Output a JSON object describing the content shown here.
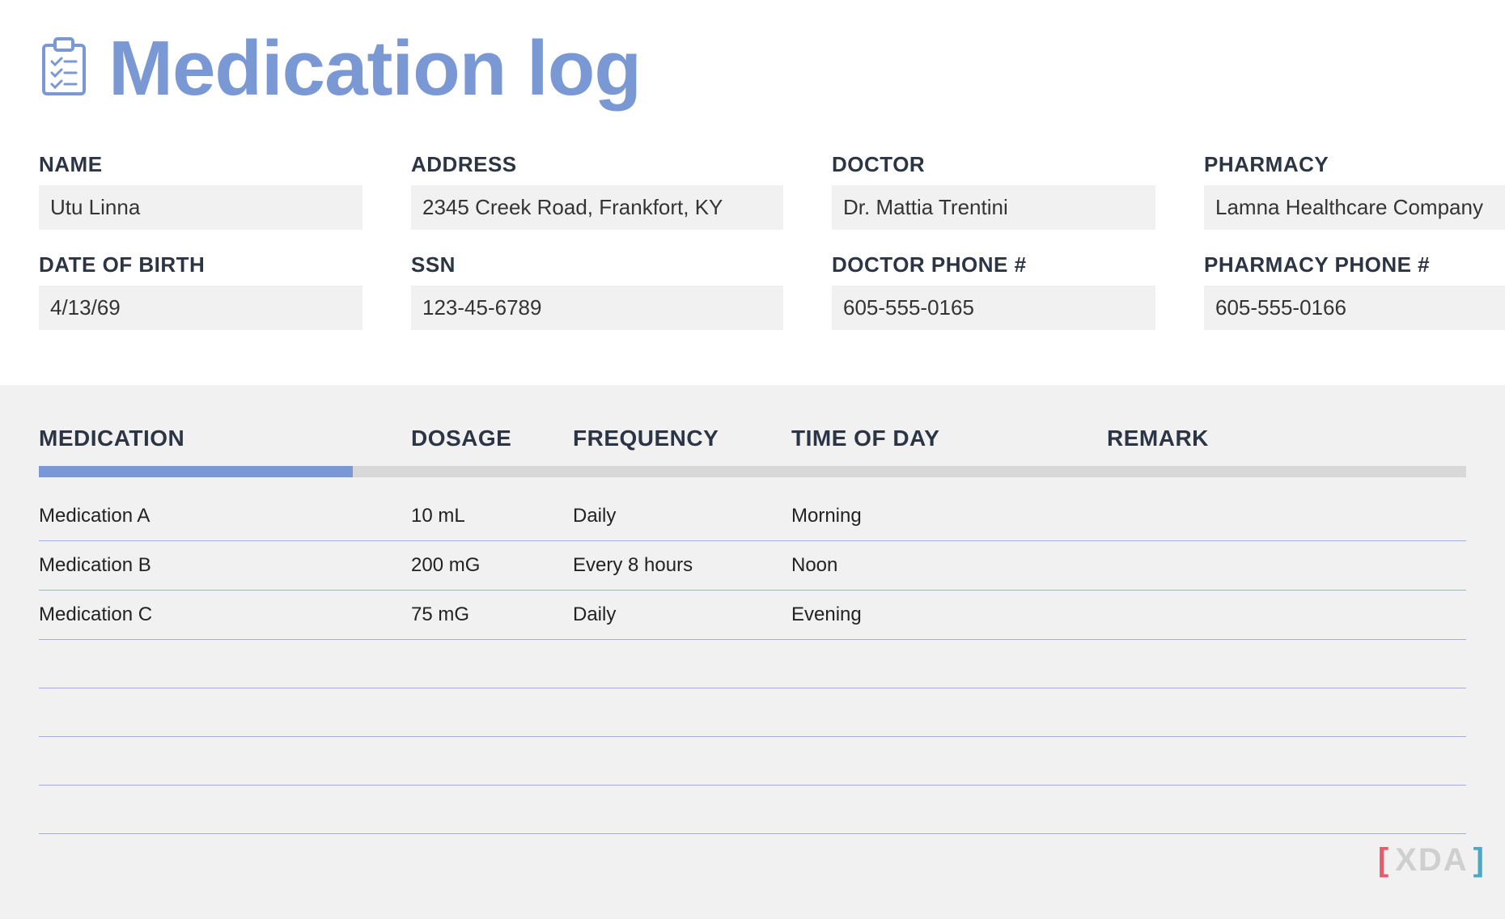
{
  "title": "Medication log",
  "colors": {
    "accent": "#7a98d4",
    "heading_text": "#2b3544",
    "body_text": "#343434",
    "field_bg": "#f1f1f1",
    "lower_bg": "#f1f1f1",
    "progress_track": "#d8d8d8",
    "row_border": "#9db1d9",
    "watermark_grey": "#cfcfcf",
    "watermark_red": "#e85a6b",
    "watermark_blue": "#4aa8c9"
  },
  "info": {
    "name": {
      "label": "NAME",
      "value": "Utu Linna"
    },
    "address": {
      "label": "ADDRESS",
      "value": "2345 Creek Road, Frankfort, KY"
    },
    "doctor": {
      "label": "DOCTOR",
      "value": "Dr. Mattia Trentini"
    },
    "pharmacy": {
      "label": "PHARMACY",
      "value": "Lamna Healthcare Company"
    },
    "dob": {
      "label": "DATE OF BIRTH",
      "value": "4/13/69"
    },
    "ssn": {
      "label": "SSN",
      "value": "123-45-6789"
    },
    "doctor_phone": {
      "label": "DOCTOR PHONE #",
      "value": "605-555-0165"
    },
    "pharmacy_phone": {
      "label": "PHARMACY PHONE #",
      "value": "605-555-0166"
    }
  },
  "table": {
    "columns": [
      "MEDICATION",
      "DOSAGE",
      "FREQUENCY",
      "TIME OF DAY",
      "REMARK"
    ],
    "progress_percent": 22,
    "rows": [
      {
        "medication": "Medication A",
        "dosage": "10 mL",
        "frequency": "Daily",
        "time": "Morning",
        "remark": ""
      },
      {
        "medication": "Medication B",
        "dosage": "200 mG",
        "frequency": "Every 8 hours",
        "time": "Noon",
        "remark": ""
      },
      {
        "medication": "Medication C",
        "dosage": "75 mG",
        "frequency": "Daily",
        "time": "Evening",
        "remark": ""
      }
    ],
    "empty_row_count": 4
  },
  "watermark": {
    "bracket_l": "[",
    "text": "XDA",
    "bracket_r": "]"
  }
}
